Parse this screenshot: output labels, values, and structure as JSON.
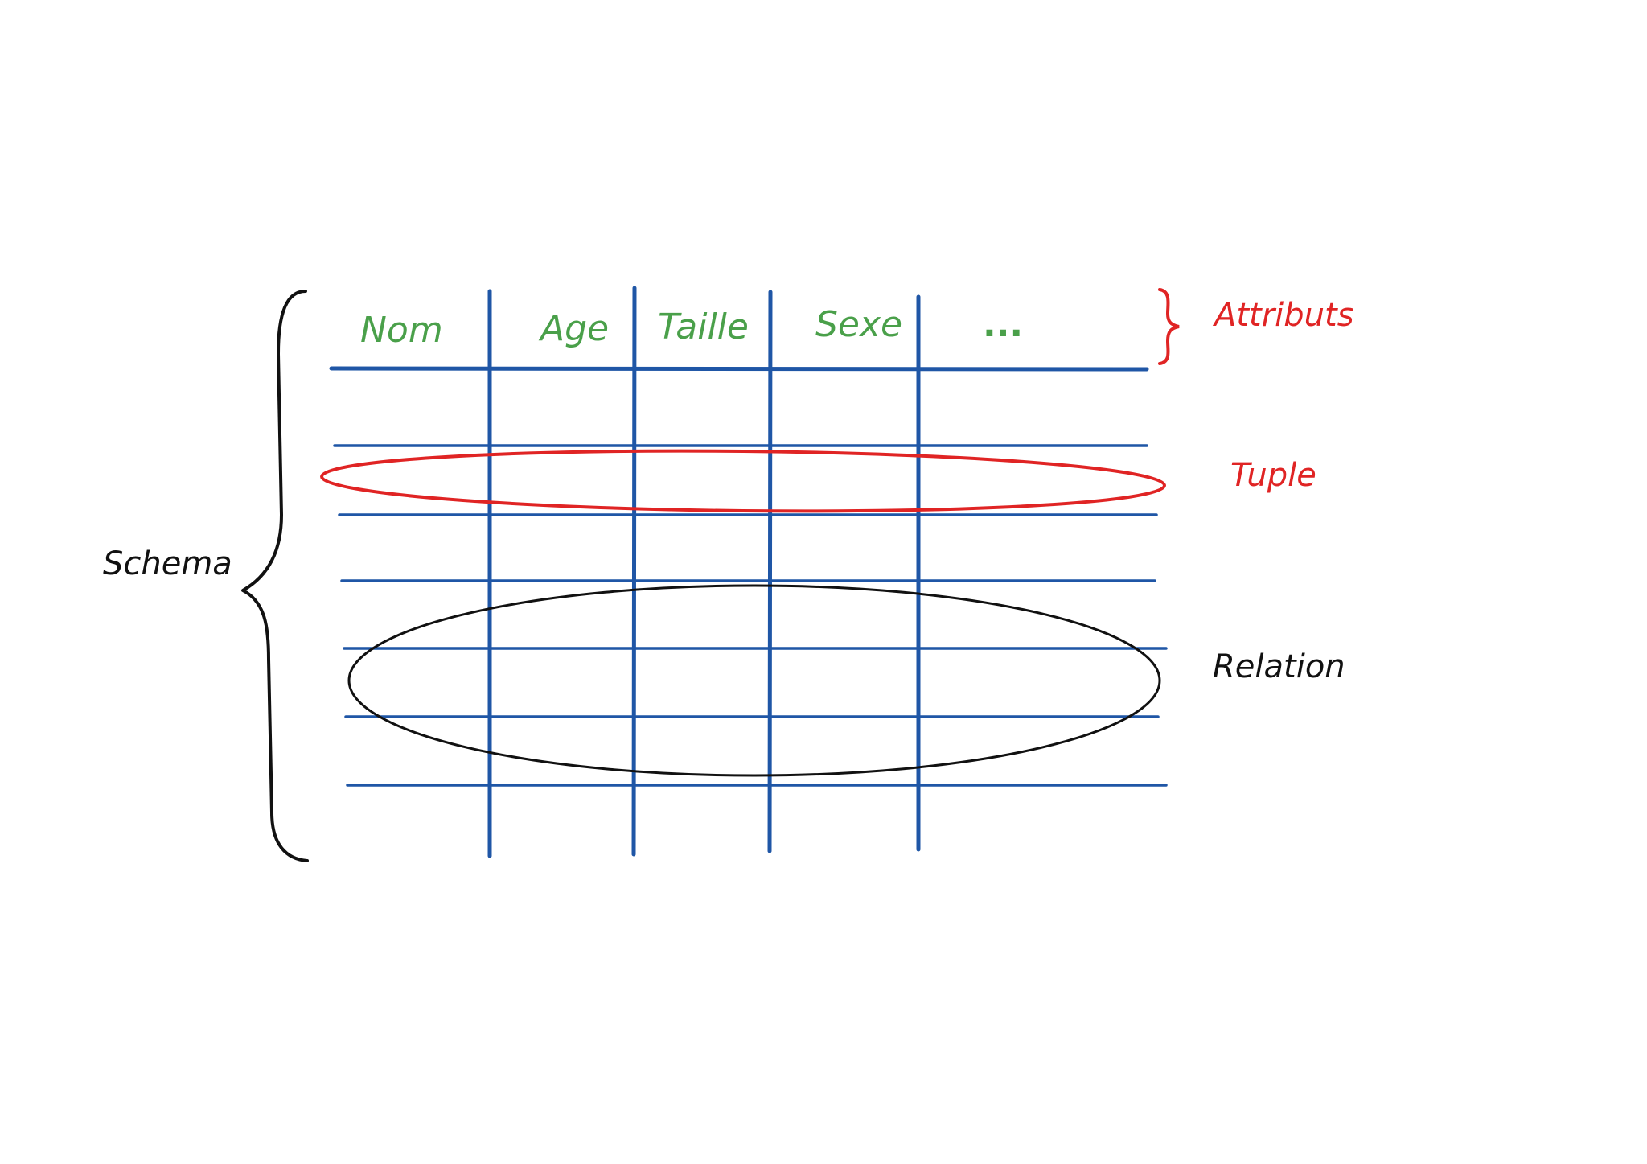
{
  "colors": {
    "grid": "#1f56a6",
    "attributes": "#4aa04a",
    "tuple": "#e02424",
    "relation": "#111111",
    "schema": "#111111"
  },
  "diagram": {
    "attributes_header": [
      "Nom",
      "Age",
      "Taille",
      "Sexe",
      "..."
    ],
    "labels": {
      "attributs": "Attributs",
      "tuple": "Tuple",
      "relation": "Relation",
      "schema": "Schema"
    }
  }
}
